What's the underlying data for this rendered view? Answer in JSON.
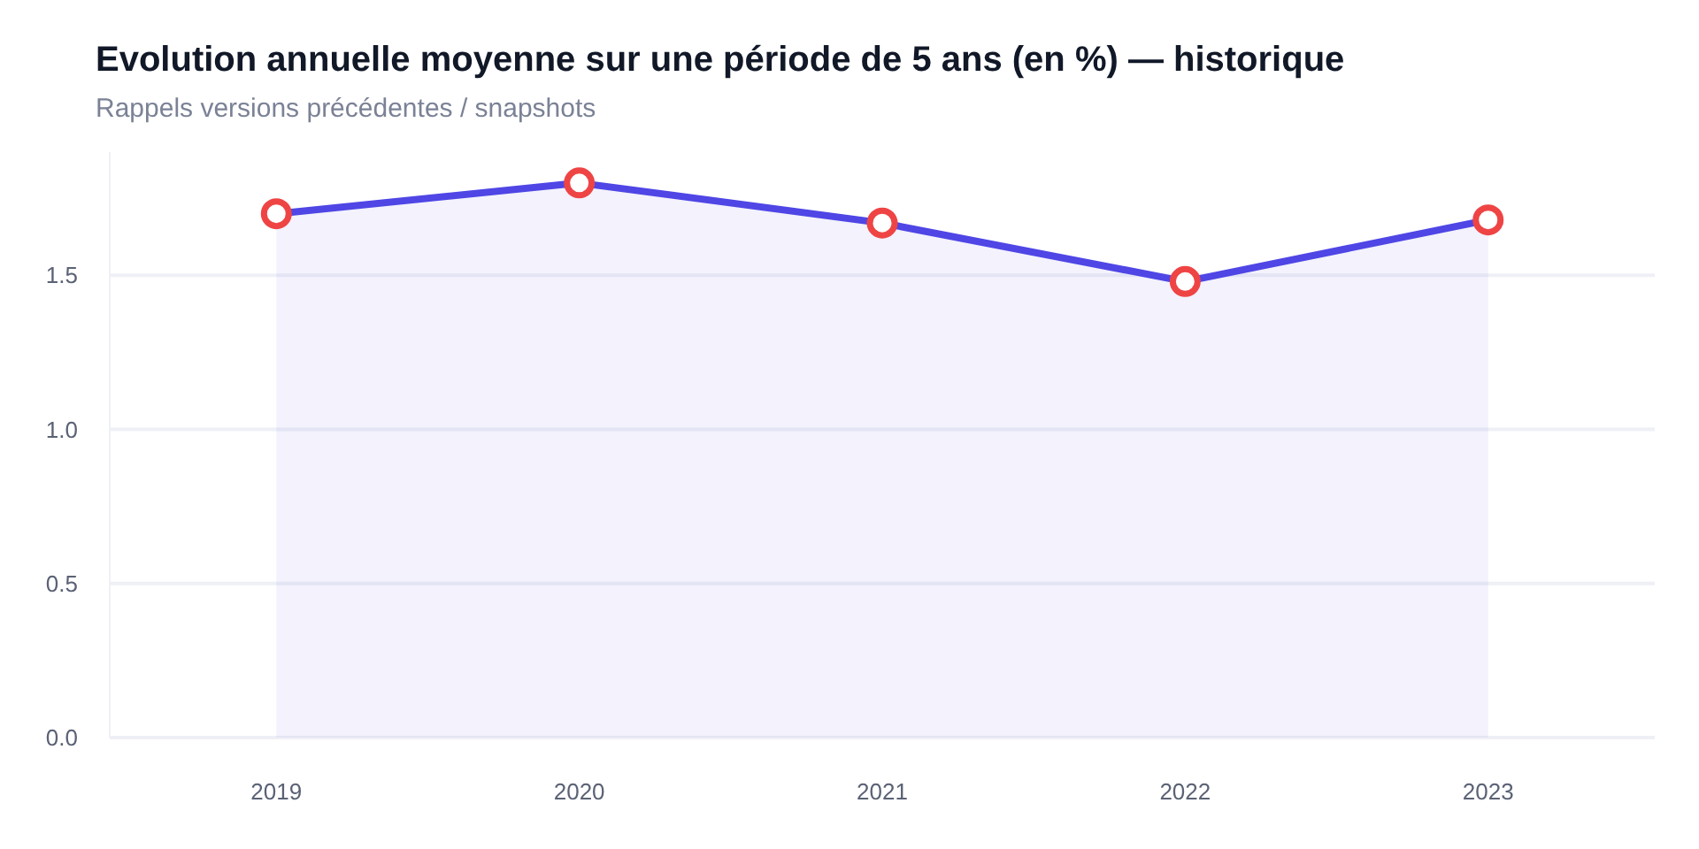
{
  "chart_data": {
    "type": "area",
    "title": "Evolution annuelle moyenne sur une période de 5 ans (en %) — historique",
    "subtitle": "Rappels versions précédentes / snapshots",
    "categories": [
      "2019",
      "2020",
      "2021",
      "2022",
      "2023"
    ],
    "series": [
      {
        "color": "#4f46e5",
        "values": [
          1.7,
          1.8,
          1.67,
          1.48,
          1.68
        ]
      }
    ],
    "ylim": [
      0,
      1.9
    ],
    "yticks": [
      {
        "value": 0,
        "label": "0.0"
      },
      {
        "value": 0.5,
        "label": "0.5"
      },
      {
        "value": 1,
        "label": "1.0"
      },
      {
        "value": 1.5,
        "label": "1.5"
      }
    ],
    "grid": "y",
    "marker": "circle",
    "line_style": "solid"
  }
}
